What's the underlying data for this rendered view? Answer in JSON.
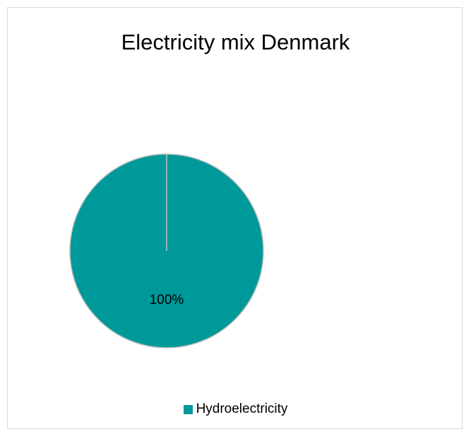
{
  "chart_data": {
    "type": "pie",
    "title": "Electricity mix Denmark",
    "categories": [
      "Hydroelectricity"
    ],
    "values": [
      100
    ],
    "data_labels": [
      "100%"
    ],
    "colors": [
      "#009999"
    ],
    "legend": "bottom"
  }
}
